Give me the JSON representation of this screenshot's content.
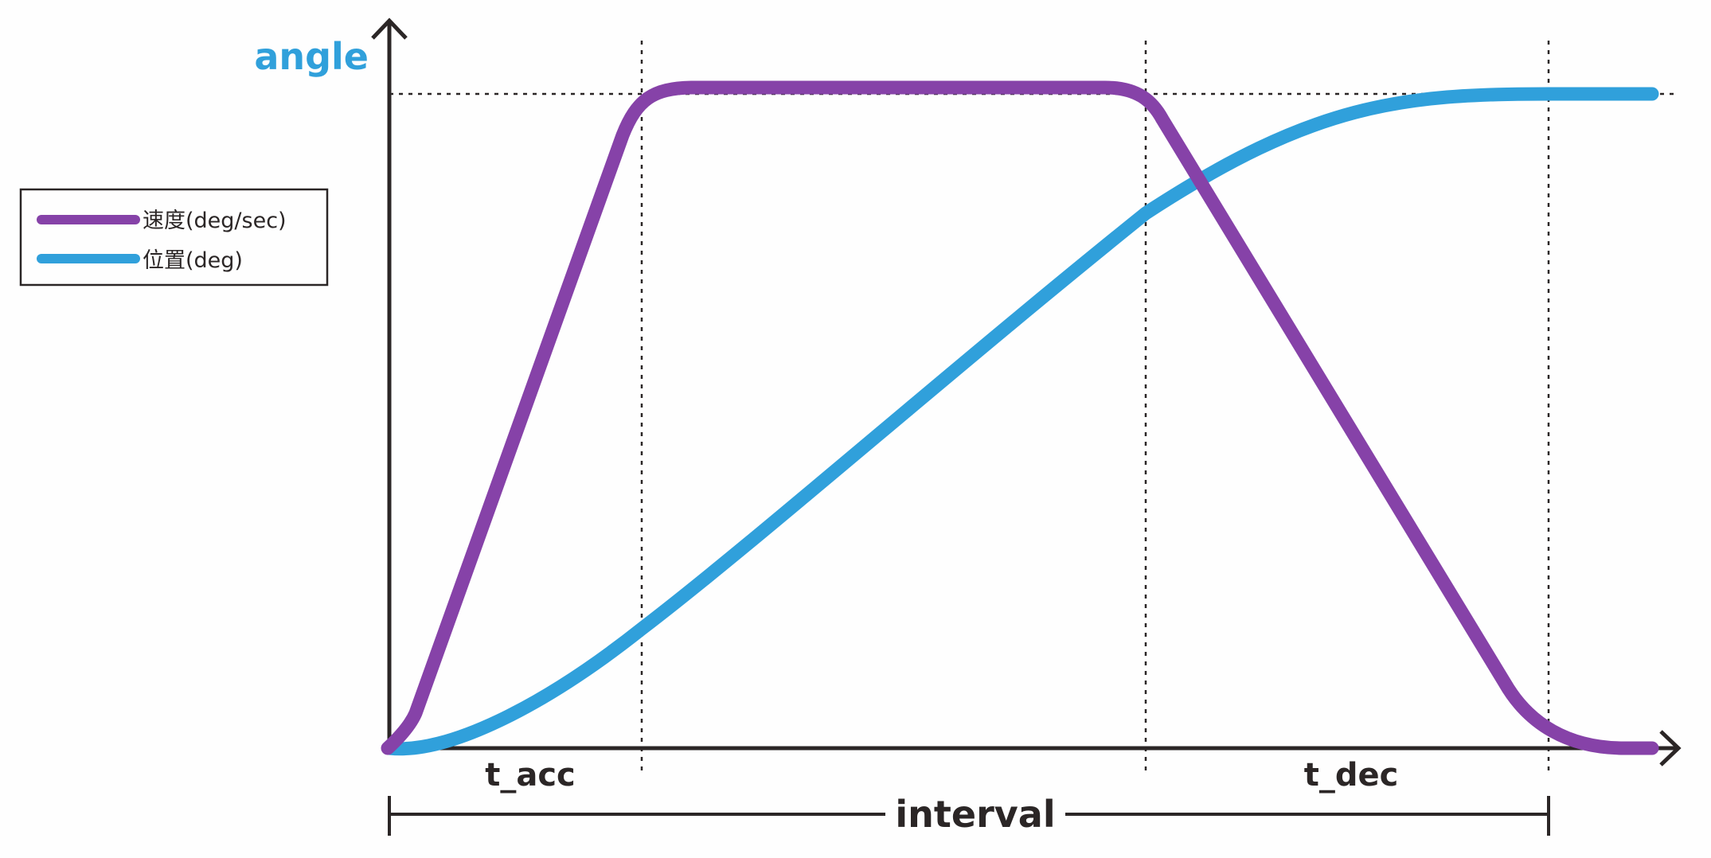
{
  "diagram": {
    "y_axis_label": "angle",
    "x_labels": {
      "acceleration": "t_acc",
      "deceleration": "t_dec",
      "interval": "interval"
    },
    "legend": [
      {
        "label": "速度(deg/sec)",
        "color": "#8642a8"
      },
      {
        "label": "位置(deg)",
        "color": "#30a0db"
      }
    ],
    "colors": {
      "velocity": "#8642a8",
      "position": "#30a0db",
      "axis": "#2b2626",
      "y_axis_label": "#30a0db"
    }
  }
}
